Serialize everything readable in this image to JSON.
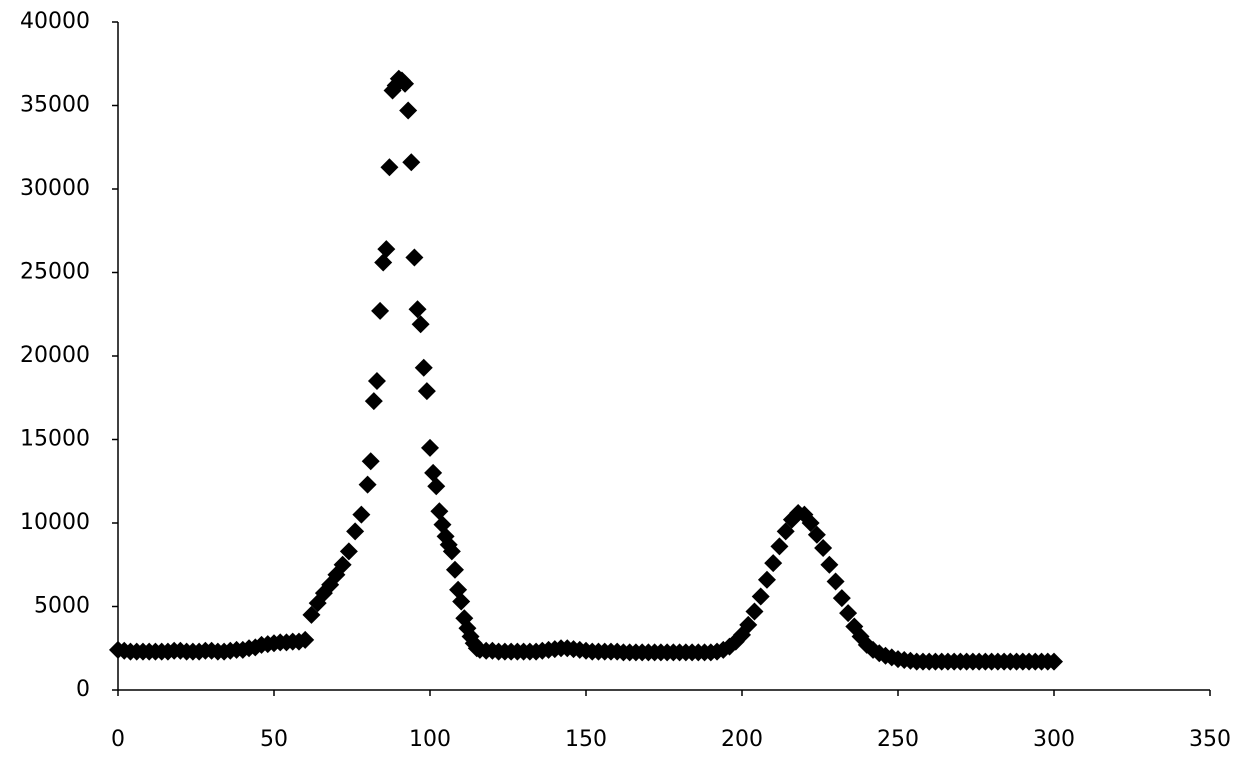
{
  "chart_data": {
    "type": "scatter",
    "color": "#000000",
    "xlim": [
      0,
      350
    ],
    "xticks": [
      0,
      50,
      100,
      150,
      200,
      250,
      300,
      350
    ],
    "ylim": [
      0,
      40000
    ],
    "yticks": [
      0,
      5000,
      10000,
      15000,
      20000,
      25000,
      30000,
      35000,
      40000
    ],
    "x": [
      0,
      2,
      4,
      6,
      8,
      10,
      12,
      14,
      16,
      18,
      20,
      22,
      24,
      26,
      28,
      30,
      32,
      34,
      36,
      38,
      40,
      42,
      44,
      46,
      48,
      50,
      52,
      54,
      56,
      58,
      60,
      62,
      64,
      66,
      68,
      70,
      72,
      74,
      76,
      78,
      80,
      81,
      82,
      83,
      84,
      85,
      86,
      87,
      88,
      89,
      90,
      91,
      92,
      93,
      94,
      95,
      96,
      97,
      98,
      99,
      100,
      101,
      102,
      103,
      104,
      105,
      106,
      107,
      108,
      109,
      110,
      111,
      112,
      113,
      114,
      115,
      116,
      118,
      120,
      122,
      124,
      126,
      128,
      130,
      132,
      134,
      136,
      138,
      140,
      142,
      144,
      146,
      148,
      150,
      152,
      154,
      156,
      158,
      160,
      162,
      164,
      166,
      168,
      170,
      172,
      174,
      176,
      178,
      180,
      182,
      184,
      186,
      188,
      190,
      192,
      194,
      196,
      198,
      200,
      202,
      204,
      206,
      208,
      210,
      212,
      214,
      216,
      218,
      220,
      222,
      224,
      226,
      228,
      230,
      232,
      234,
      236,
      238,
      240,
      242,
      244,
      246,
      248,
      250,
      252,
      254,
      256,
      258,
      260,
      262,
      264,
      266,
      268,
      270,
      272,
      274,
      276,
      278,
      280,
      282,
      284,
      286,
      288,
      290,
      292,
      294,
      296,
      298,
      300
    ],
    "values": [
      2400,
      2350,
      2300,
      2300,
      2300,
      2300,
      2300,
      2300,
      2300,
      2350,
      2350,
      2300,
      2300,
      2300,
      2350,
      2350,
      2300,
      2300,
      2350,
      2400,
      2400,
      2500,
      2550,
      2700,
      2750,
      2800,
      2850,
      2850,
      2900,
      2900,
      3000,
      4500,
      5200,
      5800,
      6300,
      6900,
      7500,
      8300,
      9500,
      10500,
      12300,
      13700,
      17300,
      18500,
      22700,
      25600,
      26400,
      31300,
      35900,
      36200,
      36600,
      36500,
      36300,
      34700,
      31600,
      25900,
      22800,
      21900,
      19300,
      17900,
      14500,
      13000,
      12200,
      10700,
      9900,
      9200,
      8700,
      8300,
      7200,
      6000,
      5300,
      4300,
      3700,
      3200,
      2800,
      2500,
      2400,
      2350,
      2350,
      2300,
      2300,
      2300,
      2300,
      2300,
      2300,
      2300,
      2350,
      2400,
      2450,
      2500,
      2500,
      2450,
      2400,
      2350,
      2300,
      2300,
      2300,
      2300,
      2300,
      2250,
      2250,
      2250,
      2250,
      2250,
      2250,
      2250,
      2250,
      2250,
      2250,
      2250,
      2250,
      2250,
      2250,
      2250,
      2300,
      2400,
      2600,
      2900,
      3300,
      3900,
      4700,
      5600,
      6600,
      7600,
      8600,
      9500,
      10200,
      10600,
      10500,
      10000,
      9300,
      8500,
      7500,
      6500,
      5500,
      4600,
      3800,
      3200,
      2700,
      2400,
      2200,
      2050,
      1950,
      1850,
      1800,
      1750,
      1700,
      1700,
      1700,
      1700,
      1700,
      1700,
      1700,
      1700,
      1700,
      1700,
      1700,
      1700,
      1700,
      1700,
      1700,
      1700,
      1700,
      1700,
      1700,
      1700,
      1700,
      1700,
      1700
    ]
  }
}
